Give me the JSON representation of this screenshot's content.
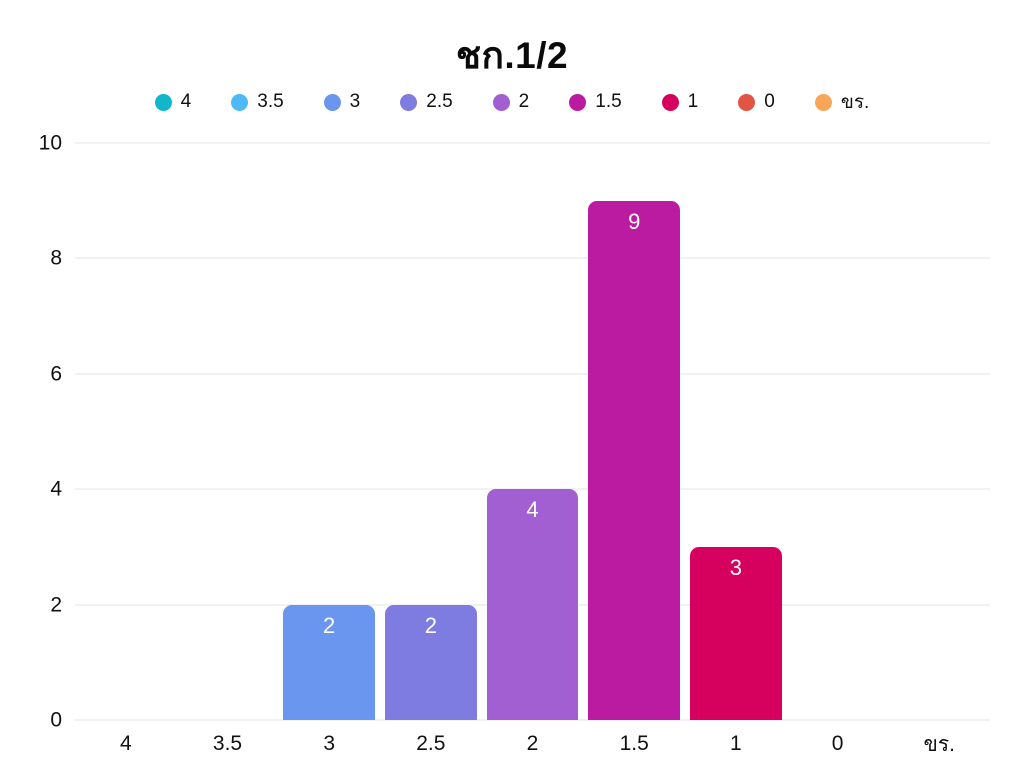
{
  "chart_data": {
    "type": "bar",
    "title": "ชก.1/2",
    "categories": [
      "4",
      "3.5",
      "3",
      "2.5",
      "2",
      "1.5",
      "1",
      "0",
      "ขร."
    ],
    "values": [
      0,
      0,
      2,
      2,
      4,
      9,
      3,
      0,
      0
    ],
    "colors": [
      "#12b5cb",
      "#4fb9f5",
      "#6a96f0",
      "#7e7ce0",
      "#a15fd1",
      "#bb1ba1",
      "#d6005f",
      "#e25444",
      "#f9a65a"
    ],
    "xlabel": "",
    "ylabel": "",
    "ylim": [
      0,
      10
    ],
    "yticks": [
      0,
      2,
      4,
      6,
      8,
      10
    ],
    "grid": true,
    "legend_position": "top",
    "background_color": "#ffffff",
    "gridline_color": "#e3e3e3",
    "value_label_color": "#ffffff",
    "axis_text_color": "#111111"
  }
}
